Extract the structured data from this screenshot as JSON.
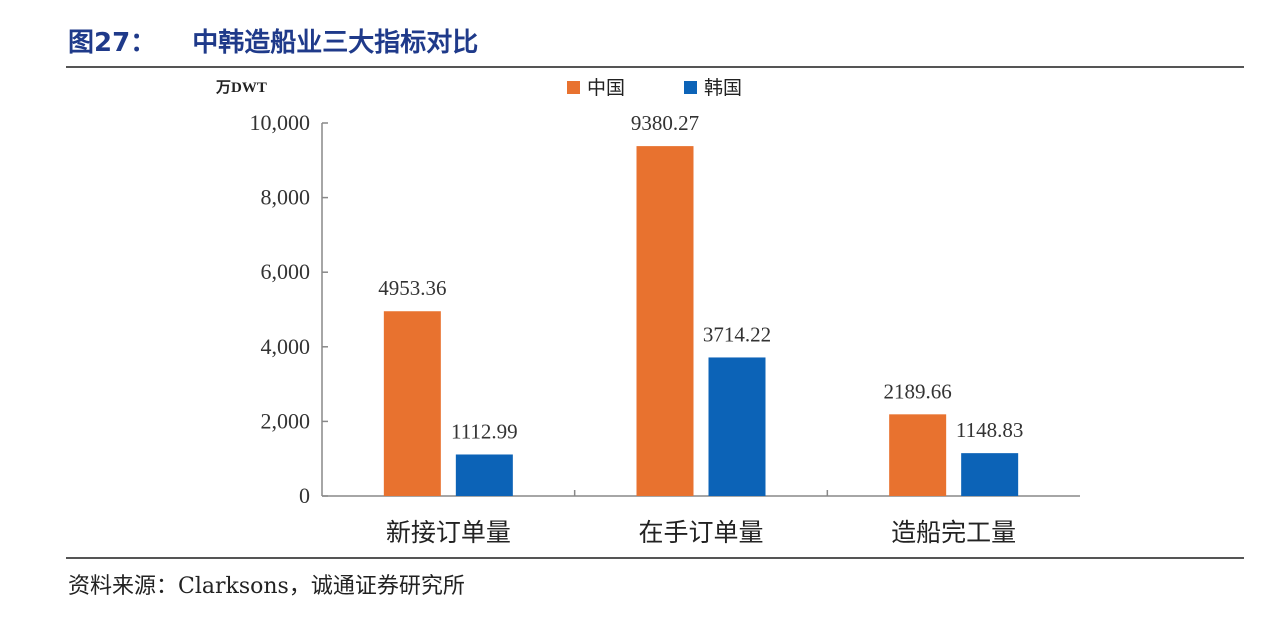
{
  "figure": {
    "title_number": "图27：",
    "title_text": "中韩造船业三大指标对比",
    "source": "资料来源：Clarksons，诚通证券研究所"
  },
  "colors": {
    "china": "#E8722F",
    "korea": "#0C63B7"
  },
  "chart_data": {
    "type": "bar",
    "title": "中韩造船业三大指标对比",
    "ylabel": "万DWT",
    "xlabel": "",
    "ylim": [
      0,
      10000
    ],
    "yticks": [
      0,
      2000,
      4000,
      6000,
      8000,
      10000
    ],
    "ytick_labels": [
      "0",
      "2,000",
      "4,000",
      "6,000",
      "8,000",
      "10,000"
    ],
    "categories": [
      "新接订单量",
      "在手订单量",
      "造船完工量"
    ],
    "series": [
      {
        "name": "中国",
        "values": [
          4953.36,
          9380.27,
          2189.66
        ],
        "labels": [
          "4953.36",
          "9380.27",
          "2189.66"
        ]
      },
      {
        "name": "韩国",
        "values": [
          1112.99,
          3714.22,
          1148.83
        ],
        "labels": [
          "1112.99",
          "3714.22",
          "1148.83"
        ]
      }
    ],
    "legend": "top-center",
    "grid": false
  }
}
